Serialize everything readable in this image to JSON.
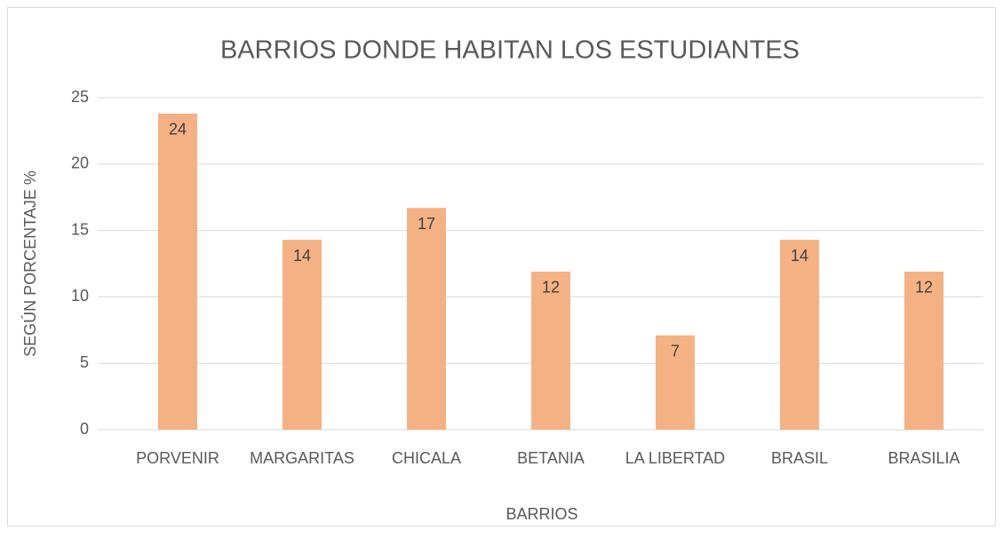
{
  "chart_data": {
    "type": "bar",
    "title": "BARRIOS DONDE HABITAN LOS ESTUDIANTES",
    "x_label": "BARRIOS",
    "y_label": "SEGÚN PORCENTAJE %",
    "categories": [
      "PORVENIR",
      "MARGARITAS",
      "CHICALA",
      "BETANIA",
      "LA LIBERTAD",
      "BRASIL",
      "BRASILIA"
    ],
    "values": [
      23.8,
      14.3,
      16.7,
      11.9,
      7.1,
      14.3,
      11.9
    ],
    "value_labels": [
      "24",
      "14",
      "17",
      "12",
      "7",
      "14",
      "12"
    ],
    "color": "#f4b183",
    "ylim": [
      0,
      25
    ],
    "yticks": [
      0,
      5,
      10,
      15,
      20,
      25
    ],
    "grid": true
  }
}
